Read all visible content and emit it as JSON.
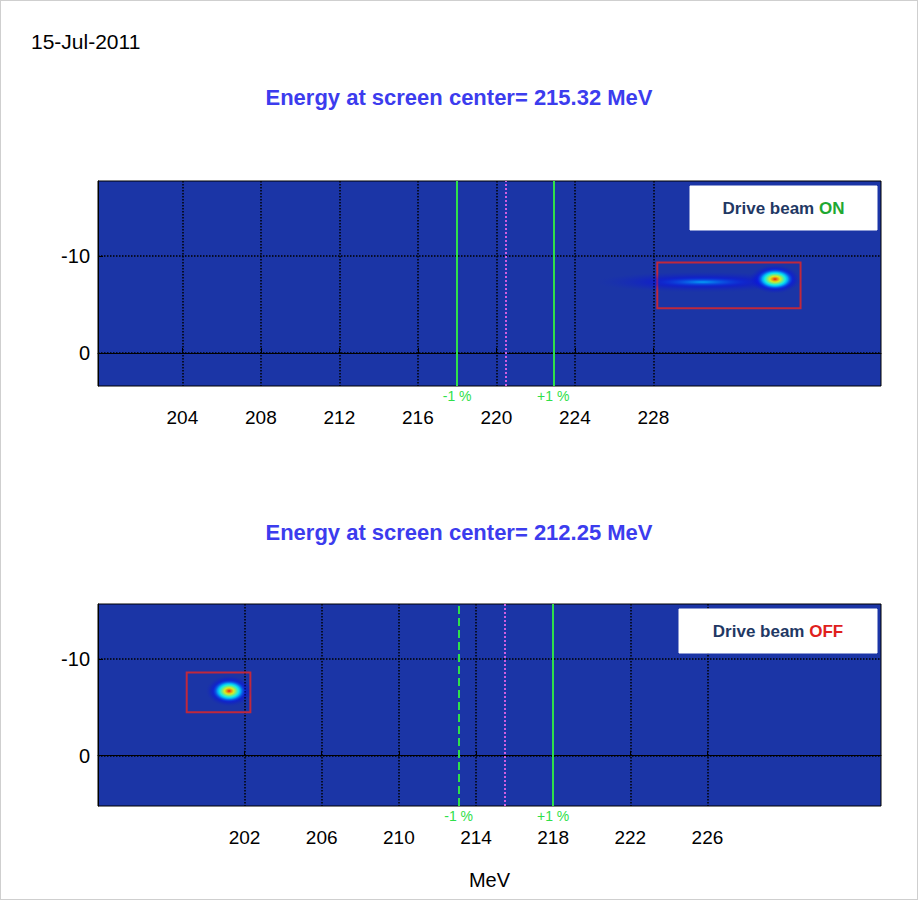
{
  "date": "15-Jul-2011",
  "chart_data": [
    {
      "type": "image",
      "title": "Energy at screen center= 215.32 MeV",
      "annotation": {
        "text": "Drive beam ON",
        "color": "#1fa832"
      },
      "xlim": [
        199.7,
        239.6
      ],
      "xticks": [
        204,
        208,
        212,
        216,
        220,
        224,
        228
      ],
      "ylim": [
        3.4,
        -17.7
      ],
      "yticks": [
        -10,
        0
      ],
      "grid": true,
      "markers": [
        {
          "x": 218.0,
          "label": "-1 %",
          "color": "#2fe04a",
          "line_style": "solid"
        },
        {
          "x": 220.5,
          "color": "#d060e0",
          "line_style": "dotted"
        },
        {
          "x": 222.9,
          "label": "+1 %",
          "color": "#2fe04a",
          "line_style": "solid"
        }
      ],
      "spots": [
        {
          "x": 230.5,
          "y": -7.3,
          "x_size": 11.0,
          "y_size": 2.2,
          "peak": 0.35
        },
        {
          "x": 234.2,
          "y": -7.6,
          "x_size": 2.6,
          "y_size": 3.0,
          "peak": 1
        }
      ],
      "box": {
        "x": [
          228.2,
          235.5
        ],
        "y": [
          -9.3,
          -4.6
        ],
        "color": "#c0283c"
      }
    },
    {
      "type": "image",
      "title": "Energy at screen center= 212.25 MeV",
      "annotation": {
        "text": "Drive beam OFF",
        "color": "#e0201c"
      },
      "xlabel": "MeV",
      "xlim": [
        194.4,
        235.0
      ],
      "xticks": [
        202,
        206,
        210,
        214,
        218,
        222,
        226
      ],
      "ylim": [
        5.2,
        -15.7
      ],
      "yticks": [
        -10,
        0
      ],
      "grid": true,
      "markers": [
        {
          "x": 213.1,
          "label": "-1 %",
          "color": "#2fe04a",
          "line_style": "dashed"
        },
        {
          "x": 215.5,
          "color": "#d060e0",
          "line_style": "dotted"
        },
        {
          "x": 218.0,
          "label": "+1 %",
          "color": "#2fe04a",
          "line_style": "solid"
        }
      ],
      "spots": [
        {
          "x": 201.2,
          "y": -6.7,
          "x_size": 2.4,
          "y_size": 3.2,
          "peak": 1
        }
      ],
      "box": {
        "x": [
          199.0,
          202.3
        ],
        "y": [
          -8.6,
          -4.5
        ],
        "color": "#c0283c"
      }
    }
  ]
}
